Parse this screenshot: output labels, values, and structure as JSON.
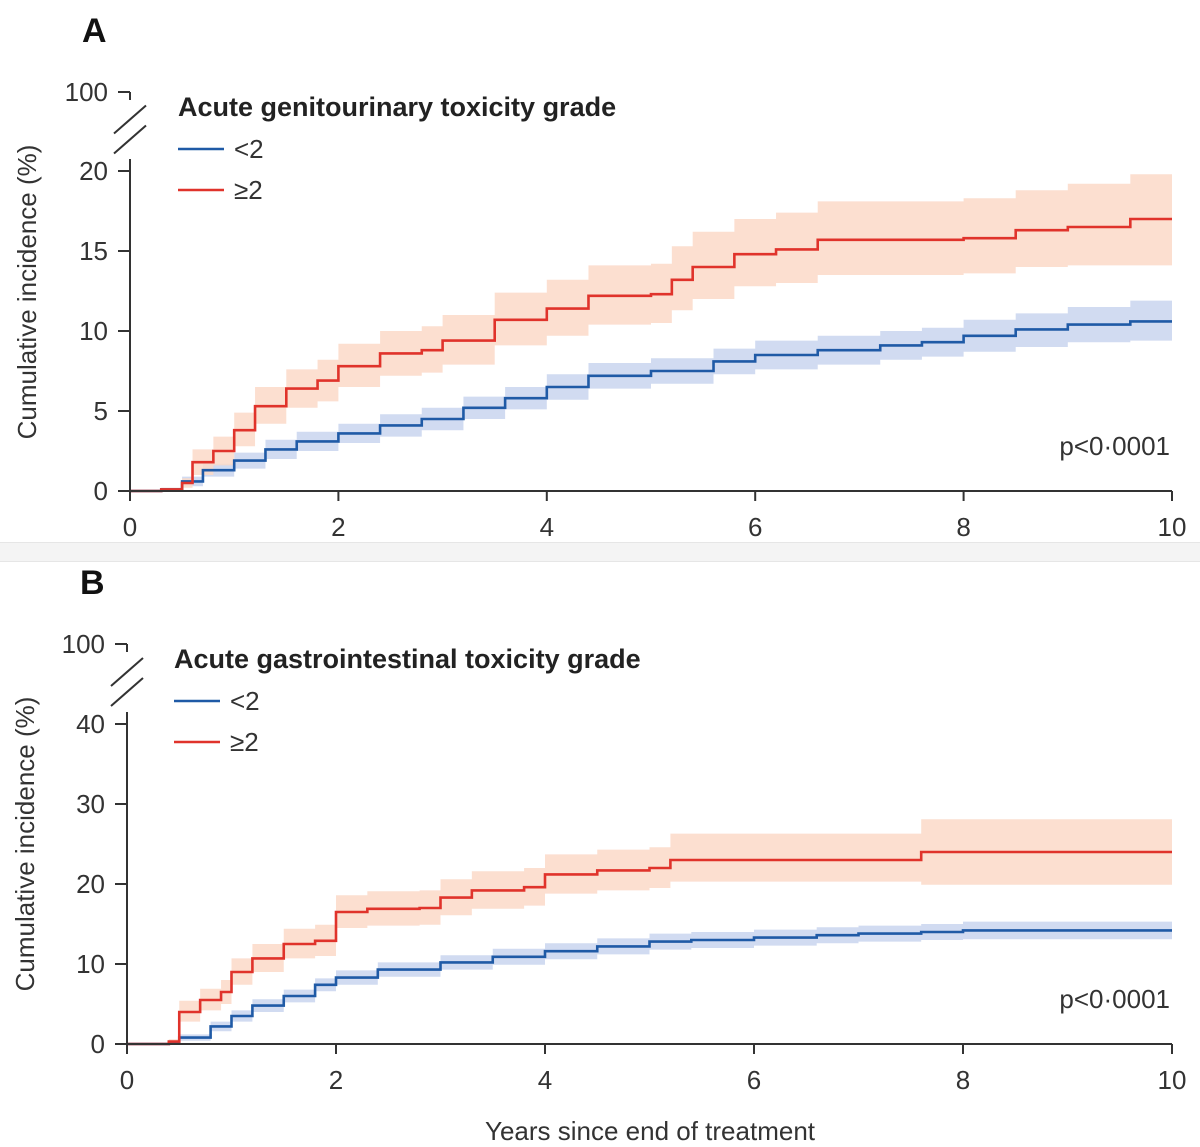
{
  "colors": {
    "series_low": "#1f5aa6",
    "series_low_band": "#c9d5ee",
    "series_high": "#e0332b",
    "series_high_band": "#fbd9c8",
    "axis": "#333333"
  },
  "chart_data": [
    {
      "type": "line",
      "panel_label": "A",
      "title": "Acute genitourinary toxicity grade",
      "xlabel": "",
      "ylabel": "Cumulative incidence (%)",
      "xlim": [
        0,
        10
      ],
      "ylim": [
        0,
        20
      ],
      "axis_break": true,
      "break_label": "100",
      "x_ticks": [
        "0",
        "2",
        "4",
        "6",
        "8",
        "10"
      ],
      "y_ticks": [
        "0",
        "5",
        "10",
        "15",
        "20"
      ],
      "annotation": "p<0·0001",
      "legend_position": "top-left",
      "series": [
        {
          "name": "<2",
          "x": [
            0,
            0.3,
            0.5,
            0.7,
            1.0,
            1.3,
            1.6,
            2.0,
            2.4,
            2.8,
            3.2,
            3.6,
            4.0,
            4.4,
            5.0,
            5.6,
            6.0,
            6.6,
            7.2,
            7.6,
            8.0,
            8.5,
            9.0,
            9.6,
            10.0
          ],
          "y": [
            0,
            0.1,
            0.6,
            1.3,
            1.9,
            2.6,
            3.1,
            3.6,
            4.1,
            4.5,
            5.2,
            5.8,
            6.5,
            7.2,
            7.5,
            8.1,
            8.5,
            8.8,
            9.1,
            9.3,
            9.7,
            10.1,
            10.4,
            10.6,
            10.6
          ],
          "lower": [
            0,
            0,
            0.3,
            0.9,
            1.4,
            2.0,
            2.5,
            3.0,
            3.4,
            3.8,
            4.5,
            5.1,
            5.7,
            6.4,
            6.7,
            7.3,
            7.6,
            7.9,
            8.2,
            8.4,
            8.7,
            9.0,
            9.3,
            9.4,
            9.4
          ],
          "upper": [
            0,
            0.2,
            0.9,
            1.7,
            2.4,
            3.2,
            3.7,
            4.2,
            4.8,
            5.2,
            5.9,
            6.5,
            7.3,
            8.0,
            8.3,
            8.9,
            9.4,
            9.7,
            10.0,
            10.2,
            10.7,
            11.1,
            11.5,
            11.9,
            11.9
          ]
        },
        {
          "name": "≥2",
          "x": [
            0,
            0.3,
            0.5,
            0.6,
            0.8,
            1.0,
            1.2,
            1.5,
            1.8,
            2.0,
            2.4,
            2.8,
            3.0,
            3.5,
            4.0,
            4.4,
            5.0,
            5.2,
            5.4,
            5.8,
            6.2,
            6.6,
            7.0,
            8.0,
            8.5,
            9.0,
            9.6,
            10.0
          ],
          "y": [
            0,
            0.1,
            0.5,
            1.8,
            2.5,
            3.8,
            5.3,
            6.4,
            6.9,
            7.8,
            8.6,
            8.8,
            9.4,
            10.7,
            11.4,
            12.2,
            12.3,
            13.2,
            14.0,
            14.8,
            15.1,
            15.7,
            15.7,
            15.8,
            16.3,
            16.5,
            17.0,
            17.0
          ],
          "lower": [
            0,
            0,
            0.2,
            1.0,
            1.6,
            2.8,
            4.2,
            5.2,
            5.6,
            6.5,
            7.2,
            7.4,
            7.9,
            9.1,
            9.7,
            10.4,
            10.5,
            11.3,
            12.0,
            12.8,
            13.0,
            13.5,
            13.5,
            13.6,
            14.0,
            14.1,
            14.1,
            14.1
          ],
          "upper": [
            0,
            0.2,
            0.8,
            2.6,
            3.4,
            4.9,
            6.5,
            7.6,
            8.2,
            9.2,
            10.0,
            10.3,
            11.0,
            12.4,
            13.2,
            14.1,
            14.2,
            15.3,
            16.2,
            17.0,
            17.4,
            18.1,
            18.1,
            18.3,
            18.8,
            19.2,
            19.8,
            19.8
          ]
        }
      ]
    },
    {
      "type": "line",
      "panel_label": "B",
      "title": "Acute gastrointestinal toxicity grade",
      "xlabel": "Years since end of treatment",
      "ylabel": "Cumulative incidence (%)",
      "xlim": [
        0,
        10
      ],
      "ylim": [
        0,
        40
      ],
      "axis_break": true,
      "break_label": "100",
      "x_ticks": [
        "0",
        "2",
        "4",
        "6",
        "8",
        "10"
      ],
      "y_ticks": [
        "0",
        "10",
        "20",
        "30",
        "40"
      ],
      "annotation": "p<0·0001",
      "legend_position": "top-left",
      "series": [
        {
          "name": "<2",
          "x": [
            0,
            0.4,
            0.5,
            0.8,
            1.0,
            1.2,
            1.5,
            1.8,
            2.0,
            2.4,
            3.0,
            3.5,
            4.0,
            4.5,
            5.0,
            5.4,
            6.0,
            6.6,
            7.0,
            7.6,
            8.0,
            9.0,
            10.0
          ],
          "y": [
            0,
            0.2,
            0.8,
            2.2,
            3.5,
            4.8,
            6.0,
            7.4,
            8.3,
            9.3,
            10.2,
            10.9,
            11.6,
            12.2,
            12.8,
            13.0,
            13.3,
            13.6,
            13.8,
            14.0,
            14.2,
            14.2,
            14.2
          ],
          "lower": [
            0,
            0,
            0.4,
            1.6,
            2.8,
            4.0,
            5.2,
            6.6,
            7.4,
            8.4,
            9.3,
            9.9,
            10.6,
            11.2,
            11.8,
            12.0,
            12.3,
            12.6,
            12.8,
            13.0,
            13.1,
            13.1,
            13.1
          ],
          "upper": [
            0,
            0.4,
            1.2,
            2.8,
            4.2,
            5.6,
            6.8,
            8.2,
            9.2,
            10.2,
            11.1,
            11.9,
            12.6,
            13.2,
            13.8,
            14.0,
            14.3,
            14.6,
            14.8,
            15.0,
            15.3,
            15.3,
            15.3
          ]
        },
        {
          "name": "≥2",
          "x": [
            0,
            0.4,
            0.5,
            0.7,
            0.9,
            1.0,
            1.2,
            1.5,
            1.8,
            2.0,
            2.3,
            2.8,
            3.0,
            3.3,
            3.8,
            4.0,
            4.5,
            5.0,
            5.2,
            6.0,
            7.0,
            7.6,
            8.0,
            9.0,
            10.0
          ],
          "y": [
            0,
            0.3,
            4.0,
            5.5,
            6.5,
            9.0,
            10.7,
            12.5,
            12.9,
            16.5,
            16.9,
            17.0,
            18.3,
            19.2,
            19.6,
            21.2,
            21.7,
            22.0,
            23.0,
            23.0,
            23.0,
            24.0,
            24.0,
            24.0,
            24.0
          ],
          "lower": [
            0,
            0.1,
            2.8,
            4.2,
            5.0,
            7.4,
            9.0,
            10.7,
            11.0,
            14.5,
            14.8,
            14.9,
            16.1,
            16.9,
            17.3,
            18.8,
            19.2,
            19.5,
            20.3,
            20.3,
            20.3,
            19.9,
            19.9,
            19.9,
            19.9
          ],
          "upper": [
            0,
            0.6,
            5.4,
            6.9,
            8.0,
            10.7,
            12.5,
            14.4,
            14.9,
            18.6,
            19.1,
            19.2,
            20.6,
            21.6,
            22.0,
            23.7,
            24.3,
            24.6,
            26.3,
            26.3,
            26.3,
            28.1,
            28.1,
            28.1,
            28.1
          ]
        }
      ]
    }
  ]
}
